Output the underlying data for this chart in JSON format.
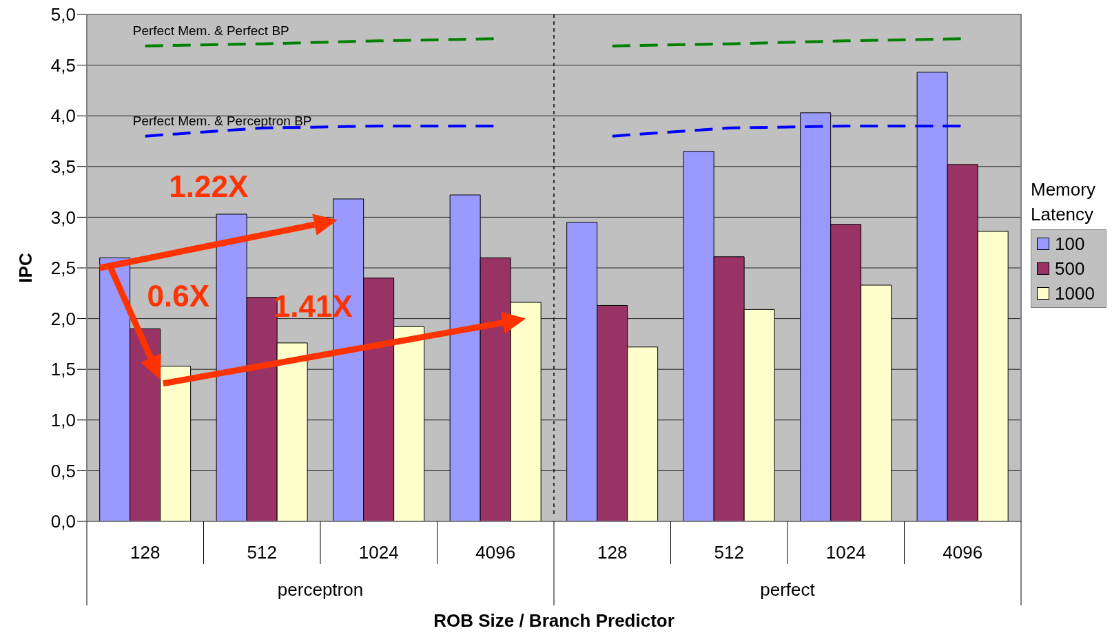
{
  "chart_data": {
    "type": "bar",
    "categories": [
      "128",
      "512",
      "1024",
      "4096",
      "128",
      "512",
      "1024",
      "4096"
    ],
    "series": [
      {
        "name": "100",
        "color": "#9999ff",
        "values": [
          2.6,
          3.03,
          3.18,
          3.22,
          2.95,
          3.65,
          4.03,
          4.43
        ]
      },
      {
        "name": "500",
        "color": "#993366",
        "values": [
          1.9,
          2.21,
          2.4,
          2.6,
          2.13,
          2.61,
          2.93,
          3.52
        ]
      },
      {
        "name": "1000",
        "color": "#ffffcc",
        "values": [
          1.53,
          1.76,
          1.92,
          2.16,
          1.72,
          2.09,
          2.33,
          2.86
        ]
      },
      {
        "name": "Perfect Mem. & Perfect BP",
        "type": "line",
        "color": "#008000",
        "line_style": "dashed",
        "values": [
          4.69,
          4.71,
          4.74,
          4.76,
          null,
          null,
          null,
          null
        ]
      },
      {
        "type": "line",
        "color": "#008000",
        "line_style": "dashed",
        "values": [
          null,
          null,
          null,
          null,
          4.69,
          4.71,
          4.74,
          4.76
        ]
      },
      {
        "name": "Perfect Mem. & Perceptron BP",
        "type": "line",
        "color": "#0000ff",
        "line_style": "dashed",
        "values": [
          3.8,
          3.88,
          3.9,
          3.9,
          null,
          null,
          null,
          null
        ]
      },
      {
        "type": "line",
        "color": "#0000ff",
        "line_style": "dashed",
        "values": [
          null,
          null,
          null,
          null,
          3.8,
          3.88,
          3.9,
          3.9
        ]
      }
    ],
    "xlabel": "ROB Size / Branch Predictor",
    "ylabel": "IPC",
    "legend_title": "Memory Latency",
    "ylim": [
      0,
      5
    ],
    "yticks": [
      {
        "value": 0,
        "label": "0,0"
      },
      {
        "value": 0.5,
        "label": "0,5"
      },
      {
        "value": 1,
        "label": "1,0"
      },
      {
        "value": 1.5,
        "label": "1,5"
      },
      {
        "value": 2,
        "label": "2,0"
      },
      {
        "value": 2.5,
        "label": "2,5"
      },
      {
        "value": 3,
        "label": "3,0"
      },
      {
        "value": 3.5,
        "label": "3,5"
      },
      {
        "value": 4,
        "label": "4,0"
      },
      {
        "value": 4.5,
        "label": "4,5"
      },
      {
        "value": 5,
        "label": "5,0"
      }
    ],
    "grid": "y",
    "legend": "right",
    "marker": "none",
    "annotations": [
      "1.22X",
      "0.6X",
      "1.41X",
      "perceptron",
      "perfect"
    ]
  }
}
